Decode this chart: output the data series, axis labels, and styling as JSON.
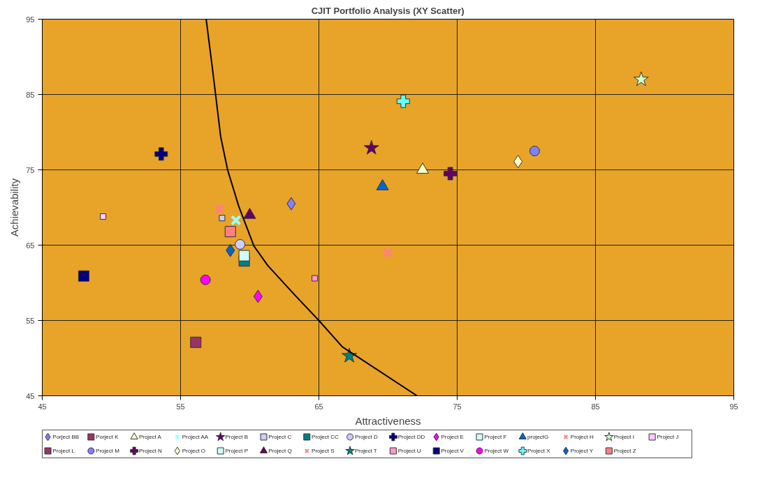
{
  "chart_data": {
    "type": "scatter",
    "title": "CJIT Portfolio Analysis (XY Scatter)",
    "xlabel": "Attractiveness",
    "ylabel": "Achievability",
    "xlim": [
      45,
      95
    ],
    "ylim": [
      45,
      95
    ],
    "xticks": [
      45,
      55,
      65,
      75,
      85,
      95
    ],
    "yticks": [
      45,
      55,
      65,
      75,
      85,
      95
    ],
    "grid": true,
    "legend": "bottom",
    "series": [
      {
        "name": "Porject BB",
        "marker": "diamond",
        "color": "#8080ff",
        "x": [
          63.0
        ],
        "values": [
          70.5
        ]
      },
      {
        "name": "Porject K",
        "marker": "square",
        "color": "#993366",
        "x": [
          56.1
        ],
        "values": [
          52.1
        ]
      },
      {
        "name": "Project A",
        "marker": "triangle",
        "color": "#ffffcc",
        "x": [
          72.5
        ],
        "values": [
          75.0
        ]
      },
      {
        "name": "Project AA",
        "marker": "x",
        "color": "#99ffff",
        "x": [
          59.0
        ],
        "values": [
          68.3
        ]
      },
      {
        "name": "Project B",
        "marker": "star",
        "color": "#660066",
        "x": [
          68.8
        ],
        "values": [
          77.9
        ]
      },
      {
        "name": "Project C",
        "marker": "rect",
        "color": "#ccccff",
        "x": [
          58.0
        ],
        "values": [
          68.6
        ]
      },
      {
        "name": "Project CC",
        "marker": "square",
        "color": "#008080",
        "x": [
          59.6
        ],
        "values": [
          62.9
        ]
      },
      {
        "name": "Project D",
        "marker": "circle",
        "color": "#ccccff",
        "x": [
          59.3
        ],
        "values": [
          65.1
        ]
      },
      {
        "name": "Project DD",
        "marker": "cross",
        "color": "#000080",
        "x": [
          53.6
        ],
        "values": [
          77.1
        ]
      },
      {
        "name": "Project E",
        "marker": "diamond",
        "color": "#ff00ff",
        "x": [
          60.6
        ],
        "values": [
          58.2
        ]
      },
      {
        "name": "Project F",
        "marker": "square",
        "color": "#ccffff",
        "x": [
          null
        ],
        "values": [
          null
        ]
      },
      {
        "name": "projectG",
        "marker": "triangle",
        "color": "#0066cc",
        "x": [
          69.6
        ],
        "values": [
          72.8
        ]
      },
      {
        "name": "Project H",
        "marker": "x",
        "color": "#ff8080",
        "x": [
          70.0
        ],
        "values": [
          64.0
        ]
      },
      {
        "name": "Project I",
        "marker": "star",
        "color": "#ccffcc",
        "x": [
          88.3
        ],
        "values": [
          87.0
        ]
      },
      {
        "name": "Project J",
        "marker": "rect",
        "color": "#ffccff",
        "x": [
          49.4
        ],
        "values": [
          68.8
        ]
      },
      {
        "name": "Project L",
        "marker": "square",
        "color": "#993366",
        "x": [
          null
        ],
        "values": [
          null
        ]
      },
      {
        "name": "Project M",
        "marker": "circle",
        "color": "#8080ff",
        "x": [
          80.6
        ],
        "values": [
          77.5
        ]
      },
      {
        "name": "Project N",
        "marker": "cross",
        "color": "#660066",
        "x": [
          74.5
        ],
        "values": [
          74.5
        ]
      },
      {
        "name": "Project O",
        "marker": "diamond",
        "color": "#ffffcc",
        "x": [
          79.4
        ],
        "values": [
          76.1
        ]
      },
      {
        "name": "Project P",
        "marker": "square",
        "color": "#ccffff",
        "x": [
          59.6
        ],
        "values": [
          63.6
        ]
      },
      {
        "name": "Project Q",
        "marker": "triangle",
        "color": "#660066",
        "x": [
          60.0
        ],
        "values": [
          69.0
        ]
      },
      {
        "name": "Project S",
        "marker": "x",
        "color": "#ff8080",
        "x": [
          57.8
        ],
        "values": [
          69.8
        ]
      },
      {
        "name": "Project T",
        "marker": "star",
        "color": "#008080",
        "x": [
          67.2
        ],
        "values": [
          50.3
        ]
      },
      {
        "name": "Project U",
        "marker": "rect",
        "color": "#ff99cc",
        "x": [
          64.7
        ],
        "values": [
          60.6
        ]
      },
      {
        "name": "Project V",
        "marker": "square",
        "color": "#000080",
        "x": [
          48.0
        ],
        "values": [
          60.9
        ]
      },
      {
        "name": "Project W",
        "marker": "circle",
        "color": "#ff00ff",
        "x": [
          56.8
        ],
        "values": [
          60.4
        ]
      },
      {
        "name": "Project X",
        "marker": "cross",
        "color": "#66ffff",
        "x": [
          71.1
        ],
        "values": [
          84.1
        ]
      },
      {
        "name": "Project Y",
        "marker": "diamond",
        "color": "#0066cc",
        "x": [
          58.6
        ],
        "values": [
          64.3
        ]
      },
      {
        "name": "Project Z",
        "marker": "square",
        "color": "#ff8080",
        "x": [
          58.6
        ],
        "values": [
          66.8
        ]
      },
      {
        "type": "line",
        "color": "#000000",
        "x": [
          56.85,
          57.3,
          57.9,
          58.4,
          59.2,
          60.3,
          61.3,
          63.3,
          65.0,
          66.7,
          72.1
        ],
        "values": [
          95,
          88.5,
          79.4,
          75.0,
          70.2,
          64.9,
          62.3,
          58.3,
          55.0,
          51.5,
          45
        ]
      }
    ]
  }
}
